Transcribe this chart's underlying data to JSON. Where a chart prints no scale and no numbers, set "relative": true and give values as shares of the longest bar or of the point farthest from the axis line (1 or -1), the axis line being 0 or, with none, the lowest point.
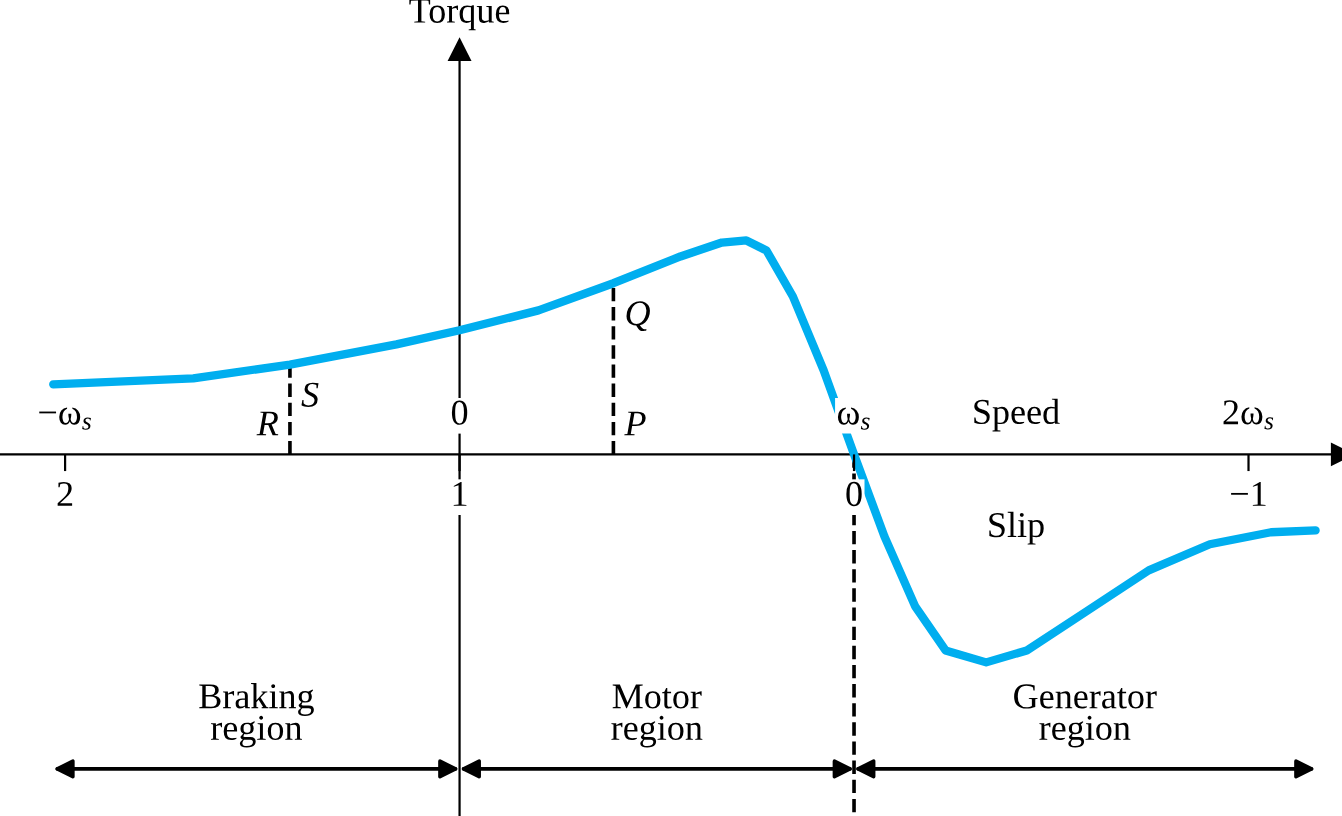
{
  "chart_data": {
    "type": "line",
    "relative": true,
    "xlabel": "Slip",
    "x2label": "Speed",
    "x": [
      2.03,
      1.675,
      1.43,
      1.16,
      1,
      0.8,
      0.61,
      0.44,
      0.335,
      0.273,
      0.222,
      0.155,
      0.077,
      0,
      -0.077,
      -0.155,
      -0.232,
      -0.335,
      -0.438,
      -0.593,
      -0.747,
      -0.902,
      -1.057,
      -1.17
    ],
    "series": [
      {
        "color": "#00aeef",
        "values": [
          0.327,
          0.355,
          0.42,
          0.514,
          0.58,
          0.673,
          0.8,
          0.925,
          0.99,
          1.0,
          0.953,
          0.738,
          0.393,
          0,
          -0.383,
          -0.71,
          -0.916,
          -0.972,
          -0.916,
          -0.729,
          -0.542,
          -0.42,
          -0.364,
          -0.355
        ]
      }
    ],
    "xlim": [
      2.165,
      -1.237
    ],
    "xticks": [
      2,
      1,
      0,
      {
        "value": -1,
        "label": "−1"
      }
    ],
    "x2lim": [
      -1.165,
      2.237
    ],
    "x2ticks": [
      {
        "value": -1,
        "label": "−ω$_{s}$"
      },
      0,
      {
        "value": 1,
        "label": "ω$_{s}$"
      },
      {
        "value": 2,
        "label": "2ω$_{s}$"
      }
    ],
    "ref_lines": [
      {
        "axis": "x",
        "value": 1.43,
        "line_style": "dashed"
      },
      {
        "axis": "x",
        "value": 0.61,
        "line_style": "dashed"
      },
      {
        "axis": "x",
        "value": 0,
        "line_style": "dashed"
      }
    ],
    "annotations": [
      "R",
      "S",
      "P",
      "Q",
      "Torque",
      "Braking\nregion",
      "Motor\nregion",
      "Generator\nregion"
    ],
    "grid": false
  }
}
